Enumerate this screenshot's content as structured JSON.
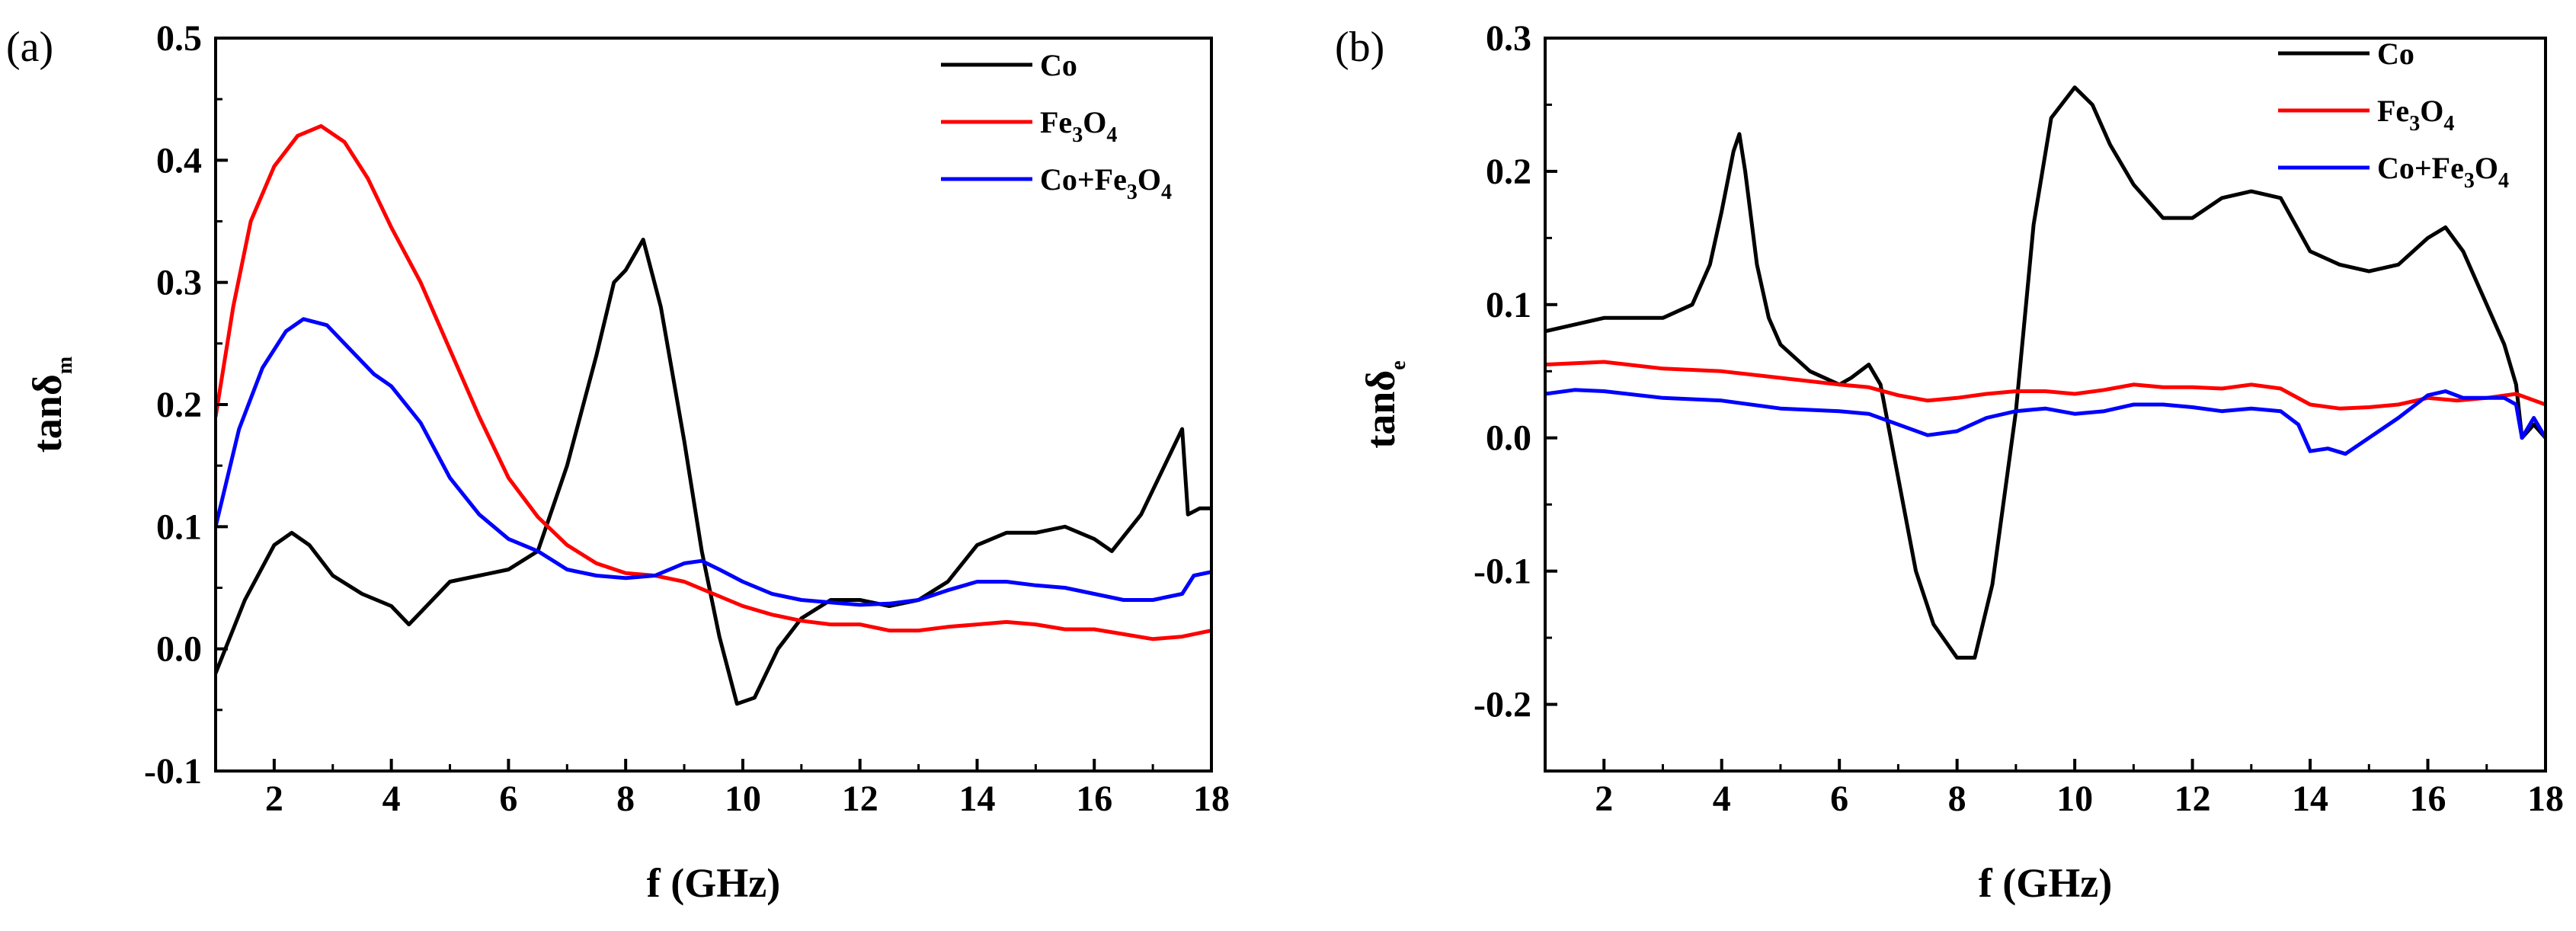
{
  "chart_data": [
    {
      "type": "line",
      "panel_label": "(a)",
      "xlabel": "f (GHz)",
      "ylabel": {
        "main": "tanδ",
        "sub": "m"
      },
      "xlim": [
        1,
        18
      ],
      "ylim": [
        -0.1,
        0.5
      ],
      "xticks": [
        2,
        4,
        6,
        8,
        10,
        12,
        14,
        16,
        18
      ],
      "yticks": [
        -0.1,
        0.0,
        0.1,
        0.2,
        0.3,
        0.4,
        0.5
      ],
      "ytick_labels": [
        "-0.1",
        "0.0",
        "0.1",
        "0.2",
        "0.3",
        "0.4",
        "0.5"
      ],
      "legend_position": "top-right",
      "series": [
        {
          "name": "Co",
          "legend": [
            {
              "t": "Co"
            }
          ],
          "color": "#000000",
          "x": [
            1.0,
            1.5,
            2.0,
            2.3,
            2.6,
            3.0,
            3.5,
            4.0,
            4.3,
            4.5,
            5.0,
            5.5,
            6.0,
            6.5,
            7.0,
            7.5,
            7.8,
            8.0,
            8.3,
            8.6,
            9.0,
            9.3,
            9.6,
            9.9,
            10.2,
            10.6,
            11.0,
            11.5,
            12.0,
            12.5,
            13.0,
            13.5,
            14.0,
            14.5,
            15.0,
            15.5,
            16.0,
            16.3,
            16.8,
            17.2,
            17.5,
            17.6,
            17.8,
            18.0
          ],
          "y": [
            -0.02,
            0.04,
            0.085,
            0.095,
            0.085,
            0.06,
            0.045,
            0.035,
            0.02,
            0.03,
            0.055,
            0.06,
            0.065,
            0.08,
            0.15,
            0.24,
            0.3,
            0.31,
            0.335,
            0.28,
            0.17,
            0.08,
            0.01,
            -0.045,
            -0.04,
            0.0,
            0.025,
            0.04,
            0.04,
            0.035,
            0.04,
            0.055,
            0.085,
            0.095,
            0.095,
            0.1,
            0.09,
            0.08,
            0.11,
            0.15,
            0.18,
            0.11,
            0.115,
            0.115
          ]
        },
        {
          "name": "Fe3O4",
          "legend": [
            {
              "t": "Fe"
            },
            {
              "t": "3",
              "s": "sub"
            },
            {
              "t": "O"
            },
            {
              "t": "4",
              "s": "sub"
            }
          ],
          "color": "#ff0000",
          "x": [
            1.0,
            1.3,
            1.6,
            2.0,
            2.4,
            2.8,
            3.2,
            3.6,
            4.0,
            4.5,
            5.0,
            5.5,
            6.0,
            6.5,
            7.0,
            7.5,
            8.0,
            8.5,
            9.0,
            9.5,
            10.0,
            10.5,
            11.0,
            11.5,
            12.0,
            12.5,
            13.0,
            13.5,
            14.0,
            14.5,
            15.0,
            15.5,
            16.0,
            16.5,
            17.0,
            17.5,
            18.0
          ],
          "y": [
            0.19,
            0.28,
            0.35,
            0.395,
            0.42,
            0.428,
            0.415,
            0.385,
            0.345,
            0.3,
            0.245,
            0.19,
            0.14,
            0.108,
            0.085,
            0.07,
            0.062,
            0.06,
            0.055,
            0.045,
            0.035,
            0.028,
            0.023,
            0.02,
            0.02,
            0.015,
            0.015,
            0.018,
            0.02,
            0.022,
            0.02,
            0.016,
            0.016,
            0.012,
            0.008,
            0.01,
            0.015
          ]
        },
        {
          "name": "Co+Fe3O4",
          "legend": [
            {
              "t": "Co+Fe"
            },
            {
              "t": "3",
              "s": "sub"
            },
            {
              "t": "O"
            },
            {
              "t": "4",
              "s": "sub"
            }
          ],
          "color": "#0000ff",
          "x": [
            1.0,
            1.4,
            1.8,
            2.2,
            2.5,
            2.9,
            3.3,
            3.7,
            4.0,
            4.5,
            5.0,
            5.5,
            6.0,
            6.5,
            7.0,
            7.5,
            8.0,
            8.5,
            9.0,
            9.3,
            9.6,
            10.0,
            10.5,
            11.0,
            11.5,
            12.0,
            12.5,
            13.0,
            13.5,
            14.0,
            14.5,
            15.0,
            15.5,
            16.0,
            16.5,
            17.0,
            17.5,
            17.7,
            18.0
          ],
          "y": [
            0.1,
            0.18,
            0.23,
            0.26,
            0.27,
            0.265,
            0.245,
            0.225,
            0.215,
            0.185,
            0.14,
            0.11,
            0.09,
            0.08,
            0.065,
            0.06,
            0.058,
            0.06,
            0.07,
            0.072,
            0.065,
            0.055,
            0.045,
            0.04,
            0.038,
            0.036,
            0.037,
            0.04,
            0.048,
            0.055,
            0.055,
            0.052,
            0.05,
            0.045,
            0.04,
            0.04,
            0.045,
            0.06,
            0.063
          ]
        }
      ]
    },
    {
      "type": "line",
      "panel_label": "(b)",
      "xlabel": "f (GHz)",
      "ylabel": {
        "main": "tanδ",
        "sub": "e"
      },
      "xlim": [
        1,
        18
      ],
      "ylim": [
        -0.25,
        0.3
      ],
      "xticks": [
        2,
        4,
        6,
        8,
        10,
        12,
        14,
        16,
        18
      ],
      "yticks": [
        -0.2,
        -0.1,
        0.0,
        0.1,
        0.2,
        0.3
      ],
      "ytick_labels": [
        "-0.2",
        "-0.1",
        "0.0",
        "0.1",
        "0.2",
        "0.3"
      ],
      "legend_position": "top-right",
      "series": [
        {
          "name": "Co",
          "legend": [
            {
              "t": "Co"
            }
          ],
          "color": "#000000",
          "x": [
            1.0,
            1.5,
            2.0,
            2.5,
            3.0,
            3.5,
            3.8,
            4.0,
            4.2,
            4.3,
            4.4,
            4.6,
            4.8,
            5.0,
            5.5,
            6.0,
            6.2,
            6.5,
            6.7,
            7.0,
            7.3,
            7.6,
            8.0,
            8.3,
            8.6,
            9.0,
            9.3,
            9.6,
            10.0,
            10.3,
            10.6,
            11.0,
            11.5,
            12.0,
            12.5,
            13.0,
            13.5,
            14.0,
            14.5,
            15.0,
            15.5,
            16.0,
            16.3,
            16.6,
            17.0,
            17.3,
            17.5,
            17.6,
            17.8,
            18.0
          ],
          "y": [
            0.08,
            0.085,
            0.09,
            0.09,
            0.09,
            0.1,
            0.13,
            0.17,
            0.215,
            0.228,
            0.2,
            0.13,
            0.09,
            0.07,
            0.05,
            0.04,
            0.045,
            0.055,
            0.04,
            -0.03,
            -0.1,
            -0.14,
            -0.165,
            -0.165,
            -0.11,
            0.02,
            0.16,
            0.24,
            0.263,
            0.25,
            0.22,
            0.19,
            0.165,
            0.165,
            0.18,
            0.185,
            0.18,
            0.14,
            0.13,
            0.125,
            0.13,
            0.15,
            0.158,
            0.14,
            0.1,
            0.07,
            0.04,
            0.0,
            0.01,
            0.0
          ]
        },
        {
          "name": "Fe3O4",
          "legend": [
            {
              "t": "Fe"
            },
            {
              "t": "3",
              "s": "sub"
            },
            {
              "t": "O"
            },
            {
              "t": "4",
              "s": "sub"
            }
          ],
          "color": "#ff0000",
          "x": [
            1.0,
            2.0,
            3.0,
            4.0,
            5.0,
            6.0,
            6.5,
            7.0,
            7.5,
            8.0,
            8.5,
            9.0,
            9.5,
            10.0,
            10.5,
            11.0,
            11.5,
            12.0,
            12.5,
            13.0,
            13.5,
            14.0,
            14.5,
            15.0,
            15.5,
            16.0,
            16.5,
            17.0,
            17.5,
            18.0
          ],
          "y": [
            0.055,
            0.057,
            0.052,
            0.05,
            0.045,
            0.04,
            0.038,
            0.032,
            0.028,
            0.03,
            0.033,
            0.035,
            0.035,
            0.033,
            0.036,
            0.04,
            0.038,
            0.038,
            0.037,
            0.04,
            0.037,
            0.025,
            0.022,
            0.023,
            0.025,
            0.03,
            0.028,
            0.03,
            0.033,
            0.025
          ]
        },
        {
          "name": "Co+Fe3O4",
          "legend": [
            {
              "t": "Co+Fe"
            },
            {
              "t": "3",
              "s": "sub"
            },
            {
              "t": "O"
            },
            {
              "t": "4",
              "s": "sub"
            }
          ],
          "color": "#0000ff",
          "x": [
            1.0,
            1.5,
            2.0,
            3.0,
            4.0,
            5.0,
            6.0,
            6.5,
            7.0,
            7.5,
            8.0,
            8.5,
            9.0,
            9.5,
            10.0,
            10.5,
            11.0,
            11.5,
            12.0,
            12.5,
            13.0,
            13.5,
            13.8,
            14.0,
            14.3,
            14.6,
            15.0,
            15.5,
            16.0,
            16.3,
            16.6,
            17.0,
            17.3,
            17.5,
            17.6,
            17.8,
            18.0
          ],
          "y": [
            0.033,
            0.036,
            0.035,
            0.03,
            0.028,
            0.022,
            0.02,
            0.018,
            0.01,
            0.002,
            0.005,
            0.015,
            0.02,
            0.022,
            0.018,
            0.02,
            0.025,
            0.025,
            0.023,
            0.02,
            0.022,
            0.02,
            0.01,
            -0.01,
            -0.008,
            -0.012,
            0.0,
            0.015,
            0.032,
            0.035,
            0.03,
            0.03,
            0.03,
            0.025,
            0.0,
            0.015,
            0.0
          ]
        }
      ]
    }
  ]
}
